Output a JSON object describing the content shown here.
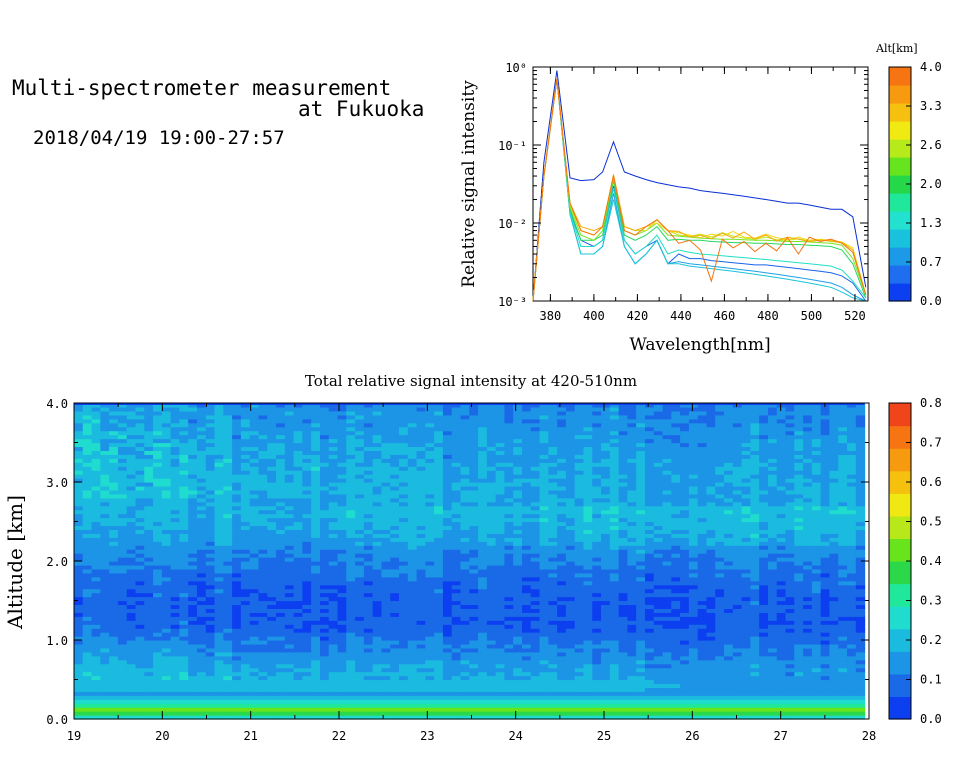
{
  "header": {
    "title_line1": "Multi-spectrometer measurement",
    "title_line2": "at Fukuoka",
    "subtitle": "2018/04/19 19:00-27:57"
  },
  "chart_data": [
    {
      "type": "line",
      "title": "",
      "xlabel": "Wavelength[nm]",
      "ylabel": "Relative signal intensity",
      "y_scale": "log",
      "xlim": [
        372,
        526
      ],
      "ylim": [
        0.001,
        1
      ],
      "x_ticks": [
        "380",
        "400",
        "420",
        "440",
        "460",
        "480",
        "500",
        "520"
      ],
      "y_ticks": [
        "10⁻³",
        "10⁻²",
        "10⁻¹",
        "10⁰"
      ],
      "colorbar": {
        "label": "Alt[km]",
        "ticks": [
          "0.0",
          "0.7",
          "1.3",
          "2.0",
          "2.6",
          "3.3",
          "4.0"
        ],
        "colors": [
          "#0c3ff0",
          "#1f6ef0",
          "#1c9ae8",
          "#19c2dc",
          "#22e2cf",
          "#1fe89a",
          "#25d84a",
          "#66e51f",
          "#b7ea1a",
          "#f0ea12",
          "#f5c00f",
          "#f79a10",
          "#f67412"
        ]
      },
      "x": [
        372,
        377,
        383,
        389,
        394,
        400,
        404,
        409,
        414,
        419,
        424,
        429,
        434,
        439,
        444,
        449,
        454,
        459,
        464,
        469,
        474,
        479,
        484,
        489,
        494,
        499,
        504,
        509,
        514,
        519,
        525
      ],
      "series": [
        {
          "color": "#0a2ed4",
          "y": [
            0.001,
            0.06,
            0.9,
            0.038,
            0.035,
            0.036,
            0.045,
            0.11,
            0.045,
            0.04,
            0.036,
            0.033,
            0.031,
            0.029,
            0.028,
            0.026,
            0.025,
            0.024,
            0.023,
            0.022,
            0.021,
            0.02,
            0.019,
            0.018,
            0.018,
            0.017,
            0.016,
            0.015,
            0.015,
            0.012,
            0.0015
          ]
        },
        {
          "color": "#1864ea",
          "y": [
            0.001,
            0.04,
            0.7,
            0.014,
            0.006,
            0.005,
            0.006,
            0.03,
            0.006,
            0.004,
            0.005,
            0.006,
            0.003,
            0.004,
            0.0035,
            0.0035,
            0.0033,
            0.0032,
            0.0031,
            0.003,
            0.0029,
            0.0029,
            0.0028,
            0.0027,
            0.0026,
            0.0025,
            0.0024,
            0.0023,
            0.0021,
            0.0017,
            0.001
          ]
        },
        {
          "color": "#1ea0e6",
          "y": [
            0.001,
            0.04,
            0.7,
            0.013,
            0.004,
            0.004,
            0.005,
            0.024,
            0.005,
            0.003,
            0.004,
            0.006,
            0.003,
            0.0032,
            0.003,
            0.0029,
            0.0028,
            0.0027,
            0.0026,
            0.0025,
            0.0024,
            0.0023,
            0.0022,
            0.0021,
            0.002,
            0.0019,
            0.0018,
            0.0017,
            0.0015,
            0.0012,
            0.001
          ]
        },
        {
          "color": "#1bc4d8",
          "y": [
            0.001,
            0.04,
            0.7,
            0.013,
            0.004,
            0.004,
            0.005,
            0.02,
            0.005,
            0.003,
            0.004,
            0.006,
            0.003,
            0.003,
            0.0028,
            0.0027,
            0.0026,
            0.0025,
            0.0024,
            0.0023,
            0.0022,
            0.0021,
            0.002,
            0.0019,
            0.0018,
            0.0017,
            0.0016,
            0.0015,
            0.0013,
            0.0011,
            0.001
          ]
        },
        {
          "color": "#20e0c4",
          "y": [
            0.001,
            0.04,
            0.7,
            0.014,
            0.005,
            0.005,
            0.006,
            0.028,
            0.006,
            0.004,
            0.005,
            0.007,
            0.004,
            0.0045,
            0.0042,
            0.004,
            0.0039,
            0.0038,
            0.0037,
            0.0036,
            0.0035,
            0.0034,
            0.0033,
            0.0032,
            0.0031,
            0.003,
            0.0029,
            0.0028,
            0.0025,
            0.0018,
            0.0011
          ]
        },
        {
          "color": "#25d860",
          "y": [
            0.001,
            0.04,
            0.7,
            0.015,
            0.006,
            0.006,
            0.007,
            0.035,
            0.007,
            0.006,
            0.007,
            0.009,
            0.006,
            0.0062,
            0.006,
            0.006,
            0.0058,
            0.0057,
            0.0056,
            0.0056,
            0.0055,
            0.0055,
            0.0054,
            0.0053,
            0.0053,
            0.0052,
            0.0051,
            0.005,
            0.0045,
            0.003,
            0.0011
          ]
        },
        {
          "color": "#78e420",
          "y": [
            0.001,
            0.04,
            0.7,
            0.016,
            0.007,
            0.006,
            0.008,
            0.04,
            0.008,
            0.007,
            0.008,
            0.01,
            0.007,
            0.0068,
            0.0066,
            0.0064,
            0.0063,
            0.0062,
            0.0062,
            0.0061,
            0.006,
            0.006,
            0.0059,
            0.0058,
            0.0058,
            0.0057,
            0.0056,
            0.0055,
            0.0052,
            0.0035,
            0.0012
          ]
        },
        {
          "color": "#c2e818",
          "y": [
            0.001,
            0.04,
            0.7,
            0.017,
            0.008,
            0.007,
            0.009,
            0.038,
            0.009,
            0.008,
            0.008,
            0.011,
            0.008,
            0.007,
            0.0068,
            0.0072,
            0.0066,
            0.0075,
            0.0068,
            0.0064,
            0.0062,
            0.0066,
            0.0061,
            0.006,
            0.0063,
            0.0059,
            0.0061,
            0.0058,
            0.0056,
            0.0045,
            0.0012
          ]
        },
        {
          "color": "#f2d814",
          "y": [
            0.001,
            0.04,
            0.7,
            0.018,
            0.008,
            0.007,
            0.009,
            0.04,
            0.009,
            0.008,
            0.009,
            0.01,
            0.008,
            0.0075,
            0.007,
            0.0065,
            0.0072,
            0.0068,
            0.0078,
            0.0066,
            0.0064,
            0.0072,
            0.0065,
            0.0061,
            0.0066,
            0.006,
            0.0062,
            0.006,
            0.0057,
            0.0048,
            0.0012
          ]
        },
        {
          "color": "#f6a812",
          "y": [
            0.001,
            0.04,
            0.7,
            0.018,
            0.009,
            0.008,
            0.009,
            0.042,
            0.009,
            0.008,
            0.009,
            0.011,
            0.008,
            0.0078,
            0.0066,
            0.007,
            0.0063,
            0.0074,
            0.0064,
            0.0077,
            0.0062,
            0.007,
            0.0059,
            0.0066,
            0.0062,
            0.0058,
            0.006,
            0.0059,
            0.0056,
            0.0045,
            0.0012
          ]
        },
        {
          "color": "#f67412",
          "y": [
            0.001,
            0.04,
            0.7,
            0.018,
            0.008,
            0.007,
            0.009,
            0.04,
            0.008,
            0.007,
            0.009,
            0.011,
            0.008,
            0.0055,
            0.006,
            0.0045,
            0.0018,
            0.0062,
            0.0048,
            0.0058,
            0.0043,
            0.0055,
            0.0044,
            0.0065,
            0.004,
            0.0066,
            0.0058,
            0.0062,
            0.0055,
            0.0042,
            0.0012
          ]
        }
      ]
    },
    {
      "type": "heatmap",
      "title": "Total relative signal intensity at 420-510nm",
      "xlabel": "",
      "ylabel": "Altitude [km]",
      "xlim": [
        19,
        28
      ],
      "ylim": [
        0,
        4
      ],
      "x_ticks": [
        "19",
        "20",
        "21",
        "22",
        "23",
        "24",
        "25",
        "26",
        "27",
        "28"
      ],
      "y_ticks": [
        "0.0",
        "1.0",
        "2.0",
        "3.0",
        "4.0"
      ],
      "data_end_x": 27.95,
      "colorbar": {
        "ticks": [
          "0.0",
          "0.1",
          "0.2",
          "0.3",
          "0.4",
          "0.5",
          "0.6",
          "0.7",
          "0.8"
        ],
        "range": [
          0,
          0.8
        ],
        "colors": [
          "#0c3ff0",
          "#1a6ae8",
          "#1d95e6",
          "#1bbbe0",
          "#1fdccf",
          "#1fe89a",
          "#2ad84a",
          "#68e41c",
          "#b8e81a",
          "#f0e812",
          "#f5c00e",
          "#f69a10",
          "#f67412",
          "#f0441a"
        ]
      },
      "profile": [
        {
          "alt": 0.0,
          "value": 0.2
        },
        {
          "alt": 0.12,
          "value": 0.45
        },
        {
          "alt": 0.2,
          "value": 0.28
        },
        {
          "alt": 0.3,
          "value": 0.15
        },
        {
          "alt": 0.45,
          "value": 0.16
        },
        {
          "alt": 0.8,
          "value": 0.12
        },
        {
          "alt": 1.2,
          "value": 0.06
        },
        {
          "alt": 1.7,
          "value": 0.08
        },
        {
          "alt": 2.2,
          "value": 0.14
        },
        {
          "alt": 2.6,
          "value": 0.18
        },
        {
          "alt": 3.2,
          "value": 0.17
        },
        {
          "alt": 3.7,
          "value": 0.14
        },
        {
          "alt": 4.0,
          "value": 0.12
        }
      ]
    }
  ]
}
